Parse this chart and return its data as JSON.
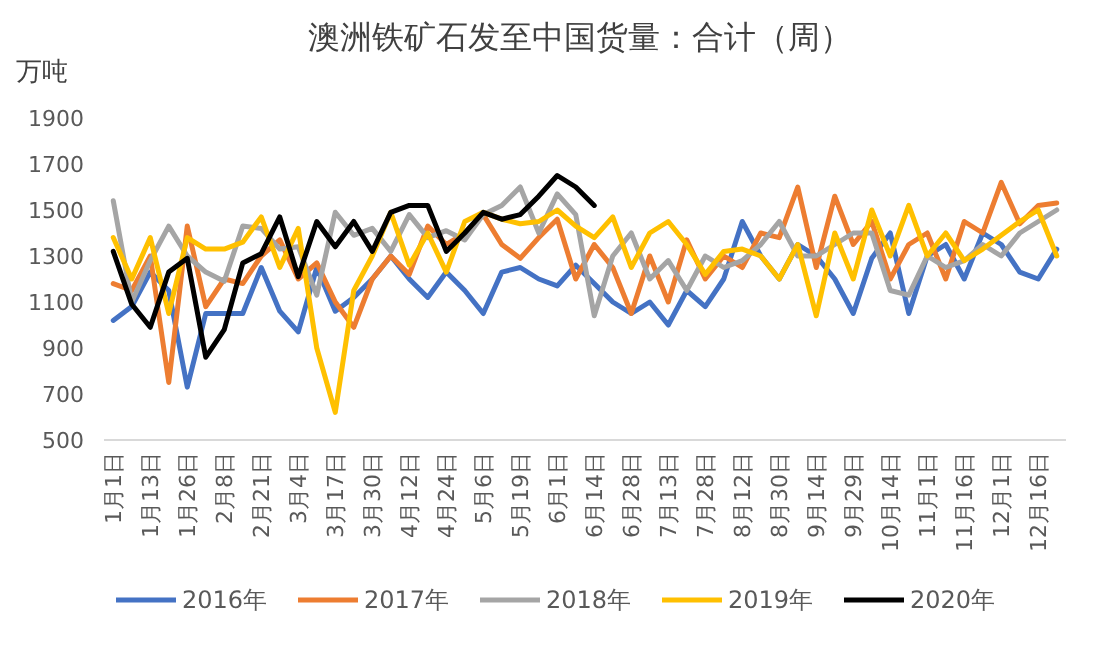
{
  "chart_data": {
    "type": "line",
    "title": "澳洲铁矿石发至中国货量：合计（周）",
    "ylabel": "万吨",
    "categories": [
      "1月1日",
      null,
      "1月13日",
      null,
      "1月26日",
      null,
      "2月8日",
      null,
      "2月21日",
      null,
      "3月4日",
      null,
      "3月17日",
      null,
      "3月30日",
      null,
      "4月12日",
      null,
      "4月24日",
      null,
      "5月6日",
      null,
      "5月19日",
      null,
      "6月1日",
      null,
      "6月14日",
      null,
      "6月28日",
      null,
      "7月13日",
      null,
      "7月28日",
      null,
      "8月12日",
      null,
      "8月30日",
      null,
      "9月14日",
      null,
      "9月29日",
      null,
      "10月14日",
      null,
      "11月1日",
      null,
      "11月16日",
      null,
      "12月1日",
      null,
      "12月16日",
      null
    ],
    "ylim": [
      500,
      1900
    ],
    "yticks": [
      500,
      700,
      900,
      1100,
      1300,
      1500,
      1700,
      1900
    ],
    "legend": "bottom",
    "series": [
      {
        "name": "2016年",
        "color": "#4472c4",
        "values": [
          1020,
          1080,
          1230,
          1150,
          730,
          1050,
          1050,
          1050,
          1250,
          1060,
          970,
          1250,
          1060,
          1120,
          1200,
          1300,
          1200,
          1120,
          1230,
          1150,
          1050,
          1230,
          1250,
          1200,
          1170,
          1260,
          1180,
          1100,
          1050,
          1100,
          1000,
          1150,
          1080,
          1200,
          1450,
          1300,
          1200,
          1350,
          1300,
          1200,
          1050,
          1290,
          1400,
          1050,
          1300,
          1350,
          1200,
          1400,
          1350,
          1230,
          1200,
          1330
        ]
      },
      {
        "name": "2017年",
        "color": "#ed7d31",
        "values": [
          1180,
          1150,
          1300,
          750,
          1430,
          1080,
          1200,
          1180,
          1300,
          1370,
          1200,
          1270,
          1100,
          990,
          1200,
          1300,
          1220,
          1430,
          1350,
          1400,
          1480,
          1350,
          1290,
          1380,
          1460,
          1200,
          1350,
          1250,
          1050,
          1300,
          1100,
          1370,
          1200,
          1300,
          1250,
          1400,
          1380,
          1600,
          1250,
          1560,
          1350,
          1450,
          1200,
          1350,
          1400,
          1200,
          1450,
          1400,
          1620,
          1440,
          1520,
          1530
        ]
      },
      {
        "name": "2018年",
        "color": "#a5a5a5",
        "values": [
          1540,
          1100,
          1280,
          1430,
          1300,
          1230,
          1190,
          1430,
          1420,
          1330,
          1340,
          1130,
          1490,
          1390,
          1420,
          1320,
          1480,
          1380,
          1410,
          1370,
          1480,
          1520,
          1600,
          1400,
          1570,
          1480,
          1040,
          1300,
          1400,
          1200,
          1280,
          1150,
          1300,
          1250,
          1280,
          1350,
          1450,
          1300,
          1300,
          1350,
          1400,
          1400,
          1150,
          1130,
          1300,
          1250,
          1280,
          1350,
          1300,
          1400,
          1450,
          1500
        ]
      },
      {
        "name": "2019年",
        "color": "#ffc000",
        "values": [
          1380,
          1200,
          1380,
          1050,
          1380,
          1330,
          1330,
          1360,
          1470,
          1250,
          1420,
          900,
          620,
          1150,
          1300,
          1490,
          1260,
          1400,
          1230,
          1450,
          1490,
          1460,
          1440,
          1450,
          1500,
          1430,
          1380,
          1470,
          1250,
          1400,
          1450,
          1350,
          1220,
          1320,
          1330,
          1300,
          1200,
          1350,
          1040,
          1400,
          1200,
          1500,
          1300,
          1520,
          1300,
          1400,
          1280,
          1330,
          1390,
          1450,
          1500,
          1300
        ]
      },
      {
        "name": "2020年",
        "color": "#000000",
        "values": [
          1320,
          1090,
          990,
          1230,
          1290,
          860,
          980,
          1270,
          1310,
          1470,
          1210,
          1450,
          1340,
          1450,
          1320,
          1490,
          1520,
          1520,
          1320,
          1400,
          1490,
          1460,
          1480,
          1560,
          1650,
          1600,
          1520,
          null,
          null,
          null,
          null,
          null,
          null,
          null,
          null,
          null,
          null,
          null,
          null,
          null,
          null,
          null,
          null,
          null,
          null,
          null,
          null,
          null,
          null,
          null,
          null,
          null
        ]
      }
    ]
  }
}
